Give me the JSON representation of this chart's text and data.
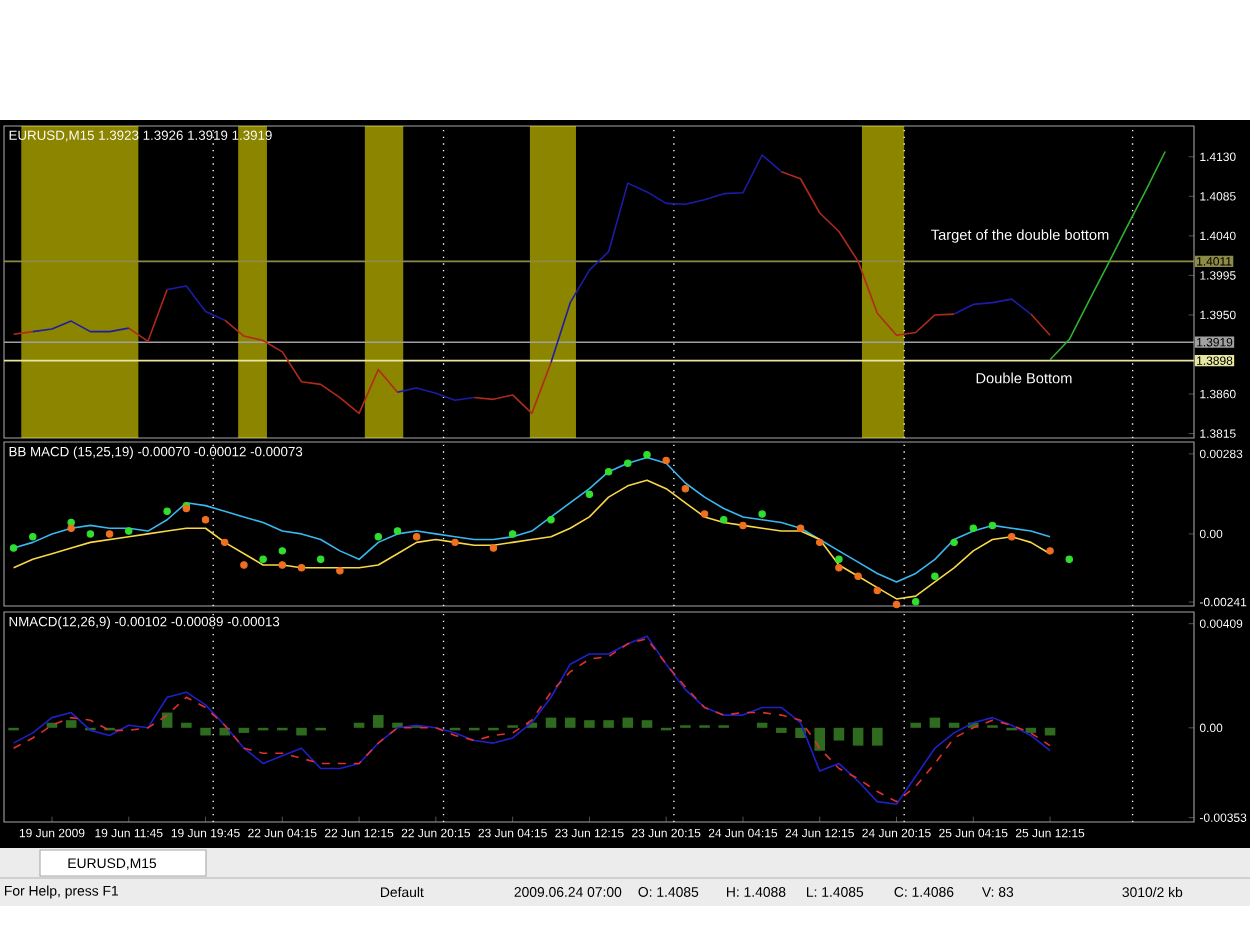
{
  "chart_data": [
    {
      "type": "line",
      "title": "EURUSD,M15  1.3923 1.3926 1.3919 1.3919",
      "ylim": [
        1.381,
        1.4165
      ],
      "tick_labels": "y",
      "categories": [
        null,
        null,
        null,
        null,
        null,
        null,
        null,
        null,
        null,
        null,
        null,
        null,
        null,
        null,
        null,
        null,
        null,
        null,
        null,
        null,
        null,
        null,
        null,
        null,
        null,
        null,
        null,
        null,
        null,
        null,
        null,
        null,
        null,
        null,
        null,
        null,
        null,
        null,
        null,
        null,
        null,
        null,
        null,
        null,
        null,
        null,
        null,
        null,
        null,
        null,
        null,
        null,
        null,
        null,
        null,
        null,
        null,
        null,
        null,
        null,
        null,
        null
      ],
      "yticks": [
        1.3815,
        {
          "value": 1.386,
          "label": "1.3860"
        },
        {
          "value": 1.395,
          "label": "1.3950"
        },
        1.3995,
        {
          "value": 1.404,
          "label": "1.4040"
        },
        1.4085,
        {
          "value": 1.413,
          "label": "1.4130"
        }
      ],
      "series": [
        {
          "color": "#b02a1c",
          "values": [
            1.3928,
            1.3931,
            null,
            null,
            null,
            null,
            1.3935,
            1.392,
            1.3979,
            null,
            null,
            1.3944,
            1.3926,
            1.3921,
            1.3908,
            1.3874,
            1.3871,
            1.3856,
            1.3838,
            1.3888,
            1.3862,
            null,
            null,
            null,
            1.3856,
            1.3854,
            1.3859,
            1.3838,
            1.3896,
            null,
            null,
            null,
            null,
            null,
            null,
            null,
            null,
            null,
            null,
            null,
            1.4113,
            1.4105,
            1.4066,
            1.4045,
            1.4011,
            1.3952,
            1.3927,
            1.393,
            1.395,
            1.3951,
            null,
            null,
            null,
            1.3951,
            1.3927,
            null,
            null,
            null,
            null,
            null,
            null,
            null
          ]
        },
        {
          "color": "#1c1ca8",
          "values": [
            null,
            1.3931,
            1.3934,
            1.3943,
            1.3931,
            1.3931,
            1.3935,
            null,
            1.3979,
            1.3983,
            1.3954,
            1.3944,
            null,
            null,
            null,
            null,
            null,
            null,
            null,
            null,
            1.3862,
            1.3867,
            1.3861,
            1.3853,
            1.3856,
            null,
            null,
            null,
            1.3896,
            1.3964,
            1.4001,
            1.4022,
            1.41,
            1.409,
            1.4077,
            1.4076,
            1.4081,
            1.4088,
            1.4089,
            1.4132,
            1.4113,
            null,
            null,
            null,
            null,
            null,
            null,
            null,
            null,
            1.3951,
            1.3962,
            1.3964,
            1.3968,
            1.3951,
            null,
            null,
            null,
            null,
            null,
            null,
            null,
            null
          ]
        },
        {
          "color": "#30b030",
          "values": [
            null,
            null,
            null,
            null,
            null,
            null,
            null,
            null,
            null,
            null,
            null,
            null,
            null,
            null,
            null,
            null,
            null,
            null,
            null,
            null,
            null,
            null,
            null,
            null,
            null,
            null,
            null,
            null,
            null,
            null,
            null,
            null,
            null,
            null,
            null,
            null,
            null,
            null,
            null,
            null,
            null,
            null,
            null,
            null,
            null,
            null,
            null,
            null,
            null,
            null,
            null,
            null,
            null,
            null,
            1.3899,
            1.3922,
            1.3965,
            1.4007,
            1.405,
            1.4092,
            1.4136,
            null
          ]
        }
      ],
      "ref_lines": [
        {
          "axis": "y",
          "value": 1.4011,
          "label": "1.4011",
          "color": "#8c8c46"
        },
        {
          "axis": "y",
          "value": 1.3919,
          "label": "1.3919",
          "color": "#a0a0a0"
        },
        {
          "axis": "y",
          "value": 1.3898,
          "label": "1.3898",
          "color": "#e6e6a0"
        }
      ],
      "annotations": [
        "Target of the double bottom",
        "Double Bottom"
      ]
    },
    {
      "type": "line",
      "title": "BB MACD (15,25,19) -0.00070 -0.00012 -0.00073",
      "ylim": [
        -0.00255,
        0.00325
      ],
      "tick_labels": "y",
      "categories": [
        null,
        null,
        null,
        null,
        null,
        null,
        null,
        null,
        null,
        null,
        null,
        null,
        null,
        null,
        null,
        null,
        null,
        null,
        null,
        null,
        null,
        null,
        null,
        null,
        null,
        null,
        null,
        null,
        null,
        null,
        null,
        null,
        null,
        null,
        null,
        null,
        null,
        null,
        null,
        null,
        null,
        null,
        null,
        null,
        null,
        null,
        null,
        null,
        null,
        null,
        null,
        null,
        null,
        null,
        null,
        null,
        null,
        null,
        null,
        null,
        null,
        null
      ],
      "yticks": [
        -0.00241,
        {
          "value": 0,
          "label": "0.00"
        },
        0.00283
      ],
      "series": [
        {
          "color": "#38b8f0",
          "values": [
            -0.0005,
            -0.0003,
            0,
            0.0002,
            0.0003,
            0.0002,
            0.0002,
            0.0001,
            0.0005,
            0.0011,
            0.001,
            0.0008,
            0.0006,
            0.0004,
            0.0001,
            0,
            -0.0002,
            -0.0006,
            -0.0009,
            -0.0003,
            0,
            0.0001,
            0,
            -0.0001,
            -0.0002,
            -0.0002,
            -0.0001,
            0.0001,
            0.0006,
            0.0011,
            0.0016,
            0.0022,
            0.0025,
            0.0027,
            0.0025,
            0.0018,
            0.0013,
            0.0009,
            0.0006,
            0.0005,
            0.0004,
            0.0002,
            -0.0002,
            -0.0006,
            -0.001,
            -0.0014,
            -0.0017,
            -0.0014,
            -0.0009,
            -0.0002,
            0.0001,
            0.0003,
            0.0002,
            0.0001,
            -0.0001,
            null,
            null,
            null,
            null,
            null,
            null,
            null
          ]
        },
        {
          "color": "#f8d848",
          "values": [
            -0.0012,
            -0.0009,
            -0.0007,
            -0.0005,
            -0.0003,
            -0.0002,
            -0.0001,
            0,
            0.0001,
            0.0002,
            0.0002,
            -0.0003,
            -0.0007,
            -0.0011,
            -0.0011,
            -0.0012,
            -0.0012,
            -0.0012,
            -0.0012,
            -0.0011,
            -0.0007,
            -0.0003,
            -0.0002,
            -0.0003,
            -0.0004,
            -0.0004,
            -0.0003,
            -0.0002,
            -0.0001,
            0.0002,
            0.0006,
            0.0013,
            0.0017,
            0.0019,
            0.0016,
            0.0011,
            0.0006,
            0.0004,
            0.0003,
            0.0002,
            0.0001,
            0.0001,
            -0.0002,
            -0.0011,
            -0.0015,
            -0.0019,
            -0.0023,
            -0.0022,
            -0.0017,
            -0.0012,
            -0.0006,
            -0.0002,
            -0.0001,
            -0.0003,
            -0.0007,
            null,
            null,
            null,
            null,
            null,
            null,
            null
          ]
        },
        {
          "type": "scatter",
          "color": "#30e030",
          "values": [
            -0.0005,
            -0.0001,
            null,
            0.0004,
            0,
            null,
            0.0001,
            null,
            0.0008,
            0.001,
            null,
            null,
            null,
            -0.0009,
            -0.0006,
            null,
            -0.0009,
            null,
            null,
            -0.0001,
            0.0001,
            null,
            null,
            null,
            null,
            null,
            0,
            null,
            0.0005,
            null,
            0.0014,
            0.0022,
            0.0025,
            0.0028,
            null,
            null,
            null,
            0.0005,
            null,
            0.0007,
            null,
            null,
            null,
            -0.0009,
            null,
            null,
            null,
            -0.0024,
            -0.0015,
            -0.0003,
            0.0002,
            0.0003,
            null,
            null,
            null,
            -0.0009,
            null,
            null,
            null,
            null,
            null,
            null
          ]
        },
        {
          "type": "scatter",
          "color": "#f07020",
          "values": [
            null,
            null,
            null,
            0.0002,
            null,
            0,
            null,
            null,
            null,
            0.0009,
            0.0005,
            -0.0003,
            -0.0011,
            null,
            -0.0011,
            -0.0012,
            null,
            -0.0013,
            null,
            null,
            null,
            -0.0001,
            null,
            -0.0003,
            null,
            -0.0005,
            null,
            null,
            null,
            null,
            null,
            null,
            null,
            null,
            0.0026,
            0.0016,
            0.0007,
            null,
            0.0003,
            null,
            null,
            0.0002,
            -0.0003,
            -0.0012,
            -0.0015,
            -0.002,
            -0.0025,
            null,
            null,
            null,
            null,
            null,
            -0.0001,
            null,
            -0.0006,
            null,
            null,
            null,
            null,
            null,
            null,
            null
          ]
        }
      ]
    },
    {
      "type": "line",
      "title": "NMACD(12,26,9) -0.00102 -0.00089 -0.00013",
      "ylim": [
        -0.0037,
        0.00455
      ],
      "categories": [
        null,
        null,
        "19 Jun 2009",
        null,
        null,
        null,
        "19 Jun 11:45",
        null,
        null,
        null,
        "19 Jun 19:45",
        null,
        null,
        null,
        "22 Jun 04:15",
        null,
        null,
        null,
        "22 Jun 12:15",
        null,
        null,
        null,
        "22 Jun 20:15",
        null,
        null,
        null,
        "23 Jun 04:15",
        null,
        null,
        null,
        "23 Jun 12:15",
        null,
        null,
        null,
        "23 Jun 20:15",
        null,
        null,
        null,
        "24 Jun 04:15",
        null,
        null,
        null,
        "24 Jun 12:15",
        null,
        null,
        null,
        "24 Jun 20:15",
        null,
        null,
        null,
        "25 Jun 04:15",
        null,
        null,
        null,
        "25 Jun 12:15",
        null,
        null,
        null,
        null,
        null,
        null,
        null
      ],
      "yticks": [
        -0.00353,
        {
          "value": 0,
          "label": "0.00"
        },
        0.00409
      ],
      "series": [
        {
          "type": "bar",
          "color": "#2e6b1e",
          "values": [
            -0.0001,
            0,
            0.0002,
            0.0003,
            -0.0001,
            -0.0001,
            0,
            0,
            0.0006,
            0.0002,
            -0.0003,
            -0.0003,
            -0.0002,
            -0.0001,
            -0.0001,
            -0.0003,
            -0.0001,
            0,
            0.0002,
            0.0005,
            0.0002,
            0.0001,
            0,
            -0.0001,
            -0.0001,
            -0.0001,
            0.0001,
            0.0002,
            0.0004,
            0.0004,
            0.0003,
            0.0003,
            0.0004,
            0.0003,
            -0.0001,
            0.0001,
            0.0001,
            0.0001,
            0,
            0.0002,
            -0.0002,
            -0.0004,
            -0.0009,
            -0.0005,
            -0.0007,
            -0.0007,
            0,
            0.0002,
            0.0004,
            0.0002,
            0.0002,
            0.0001,
            -0.0001,
            -0.0002,
            -0.0003,
            null,
            null,
            null,
            null,
            null,
            null,
            null
          ]
        },
        {
          "color": "#2020c8",
          "values": [
            -0.0006,
            -0.0002,
            0.0004,
            0.0006,
            -0.0001,
            -0.0003,
            0.0001,
            0,
            0.0012,
            0.0014,
            0.0009,
            0.0001,
            -0.0008,
            -0.0014,
            -0.0011,
            -0.0008,
            -0.0016,
            -0.0016,
            -0.0014,
            -0.0006,
            0,
            0.0001,
            0,
            -0.0002,
            -0.0005,
            -0.0006,
            -0.0004,
            0.0002,
            0.0012,
            0.0025,
            0.0029,
            0.0029,
            0.0033,
            0.0036,
            0.0025,
            0.0015,
            0.0008,
            0.0005,
            0.0005,
            0.0008,
            0.0008,
            0.0002,
            -0.0017,
            -0.0014,
            -0.0021,
            -0.0029,
            -0.003,
            -0.0019,
            -0.0008,
            -0.0002,
            0.0002,
            0.0004,
            0.0001,
            -0.0003,
            -0.0009,
            null,
            null,
            null,
            null,
            null,
            null,
            null
          ]
        },
        {
          "color": "#e03030",
          "line_style": "dashed",
          "values": [
            -0.0008,
            -0.0004,
            0.0001,
            0.0004,
            0.0003,
            -0.0001,
            -0.0001,
            0,
            0.0005,
            0.0012,
            0.0008,
            0.0001,
            -0.0008,
            -0.001,
            -0.001,
            -0.0012,
            -0.0014,
            -0.0014,
            -0.0014,
            -0.0006,
            0,
            0,
            0,
            -0.0003,
            -0.0005,
            -0.0003,
            -0.0002,
            0.0003,
            0.0014,
            0.0022,
            0.0027,
            0.0028,
            0.0033,
            0.0035,
            0.0025,
            0.0016,
            0.0008,
            0.0005,
            0.0006,
            0.0006,
            0.0005,
            0.0003,
            -0.0008,
            -0.0016,
            -0.002,
            -0.0025,
            -0.0029,
            -0.0023,
            -0.0014,
            -0.0004,
            0,
            0.0003,
            0.0001,
            -0.0002,
            -0.0007,
            null,
            null,
            null,
            null,
            null,
            null,
            null
          ]
        }
      ]
    },
    {
      "type": "other",
      "annotations": [
        "EURUSD,M15",
        "For Help, press F1",
        "Default",
        "2009.06.24 07:00",
        "O: 1.4085",
        "H: 1.4088",
        "L: 1.4085",
        "C: 1.4086",
        "V: 83",
        "3010/2 kb"
      ]
    }
  ]
}
